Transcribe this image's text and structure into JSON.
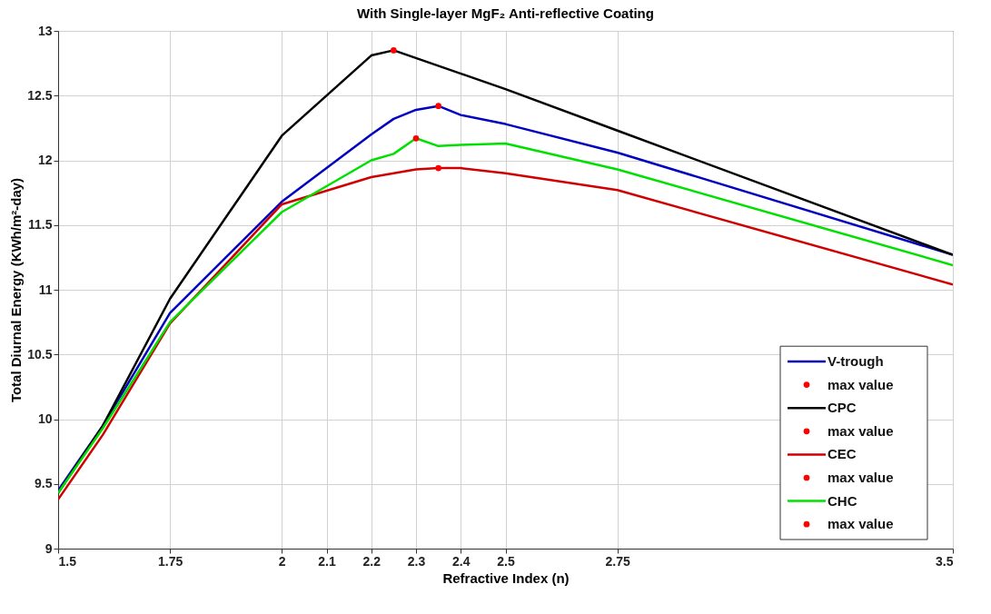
{
  "chart_data": {
    "type": "line",
    "title": "With Single-layer MgF₂ Anti-reflective Coating",
    "xlabel": "Refractive Index (n)",
    "ylabel": "Total Diurnal Energy (KWh/m²-day)",
    "series": [
      {
        "name": "V-trough",
        "color": "#0000c0",
        "x": [
          1.5,
          1.6,
          1.75,
          2.0,
          2.2,
          2.25,
          2.3,
          2.35,
          2.4,
          2.5,
          2.75,
          3.5
        ],
        "values": [
          9.45,
          9.95,
          10.82,
          11.68,
          12.2,
          12.32,
          12.39,
          12.42,
          12.35,
          12.28,
          12.06,
          11.27
        ]
      },
      {
        "name": "max value",
        "type": "scatter",
        "color": "#ff0000",
        "x": [
          2.35
        ],
        "values": [
          12.42
        ]
      },
      {
        "name": "CPC",
        "color": "#000000",
        "x": [
          1.5,
          1.6,
          1.75,
          2.0,
          2.2,
          2.25,
          2.5,
          2.75,
          3.5
        ],
        "values": [
          9.43,
          9.95,
          10.93,
          12.19,
          12.81,
          12.85,
          12.55,
          12.23,
          11.27
        ]
      },
      {
        "name": "max value",
        "type": "scatter",
        "color": "#ff0000",
        "x": [
          2.25
        ],
        "values": [
          12.85
        ]
      },
      {
        "name": "CEC",
        "color": "#d00000",
        "x": [
          1.5,
          1.6,
          1.75,
          2.0,
          2.2,
          2.25,
          2.3,
          2.35,
          2.4,
          2.5,
          2.75,
          3.5
        ],
        "values": [
          9.38,
          9.88,
          10.74,
          11.66,
          11.87,
          11.9,
          11.93,
          11.94,
          11.94,
          11.9,
          11.77,
          11.04
        ]
      },
      {
        "name": "max value",
        "type": "scatter",
        "color": "#ff0000",
        "x": [
          2.35
        ],
        "values": [
          11.94
        ]
      },
      {
        "name": "CHC",
        "color": "#00e000",
        "x": [
          1.5,
          1.6,
          1.75,
          2.0,
          2.2,
          2.25,
          2.3,
          2.35,
          2.4,
          2.5,
          2.75,
          3.5
        ],
        "values": [
          9.43,
          9.93,
          10.75,
          11.6,
          12.0,
          12.05,
          12.17,
          12.11,
          12.12,
          12.13,
          11.93,
          11.19
        ]
      },
      {
        "name": "max value",
        "type": "scatter",
        "color": "#ff0000",
        "x": [
          2.3
        ],
        "values": [
          12.17
        ]
      }
    ],
    "xlim": [
      1.5,
      3.5
    ],
    "xticks": [
      1.5,
      1.75,
      2,
      2.1,
      2.2,
      2.3,
      2.4,
      2.5,
      2.75,
      3.5
    ],
    "ylim": [
      9,
      13
    ],
    "yticks": [
      9,
      9.5,
      10,
      10.5,
      11,
      11.5,
      12,
      12.5,
      13
    ],
    "grid": true,
    "legend": "bottom right",
    "line_style": "solid"
  }
}
